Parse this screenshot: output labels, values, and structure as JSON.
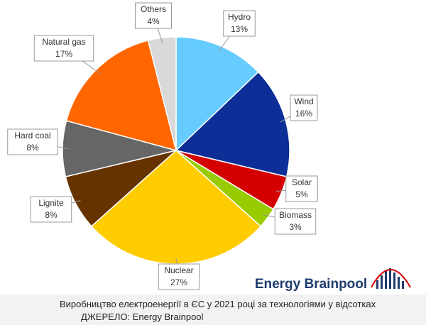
{
  "chart_data": {
    "type": "pie",
    "title": "Виробництво електроенергії в ЄС у 2021 році за технологіями у відсотках",
    "source": "ДЖЕРЕЛО: Energy Brainpool",
    "logo": "Energy Brainpool",
    "categories": [
      "Hydro",
      "Wind",
      "Solar",
      "Biomass",
      "Nuclear",
      "Lignite",
      "Hard coal",
      "Natural gas",
      "Others"
    ],
    "values": [
      13,
      16,
      5,
      3,
      27,
      8,
      8,
      17,
      4
    ],
    "value_labels": [
      "13%",
      "16%",
      "5%",
      "3%",
      "27%",
      "8%",
      "8%",
      "17%",
      "4%"
    ],
    "colors": [
      "#66ccff",
      "#0c2e96",
      "#d40000",
      "#99cc00",
      "#ffcc00",
      "#663300",
      "#666666",
      "#ff6600",
      "#d9d9d9"
    ]
  }
}
